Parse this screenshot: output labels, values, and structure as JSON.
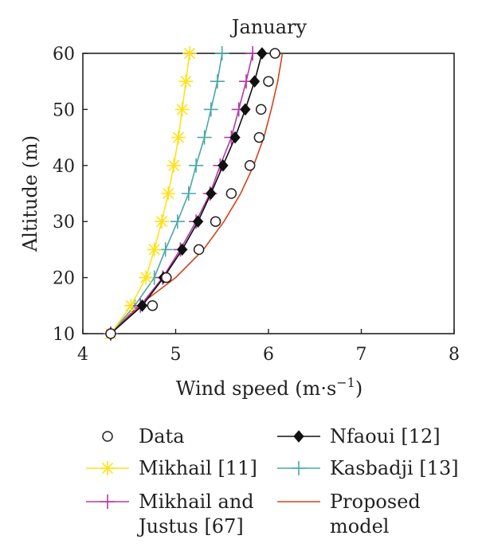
{
  "chart_data": {
    "type": "line",
    "title": "January",
    "xlabel": "Wind speed (m·s",
    "xlabel_sup": "−1",
    "xlabel_end": ")",
    "ylabel": "Altitude (m)",
    "xlim": [
      4,
      8
    ],
    "ylim": [
      10,
      60
    ],
    "xticks": [
      4,
      5,
      6,
      7,
      8
    ],
    "yticks": [
      10,
      20,
      30,
      40,
      50,
      60
    ],
    "grid": false,
    "legend_position": "bottom",
    "series": [
      {
        "name": "Data",
        "color": "#222222",
        "marker": "circle",
        "line": false,
        "points": [
          [
            4.3,
            10
          ],
          [
            4.75,
            15
          ],
          [
            4.9,
            20
          ],
          [
            5.25,
            25
          ],
          [
            5.43,
            30
          ],
          [
            5.6,
            35
          ],
          [
            5.8,
            40
          ],
          [
            5.9,
            45
          ],
          [
            5.92,
            50
          ],
          [
            6.0,
            55
          ],
          [
            6.07,
            60
          ]
        ]
      },
      {
        "name": "Mikhail [11]",
        "color": "#ffe11a",
        "marker": "star",
        "line": true,
        "points": [
          [
            4.3,
            10
          ],
          [
            4.52,
            15
          ],
          [
            4.68,
            20
          ],
          [
            4.77,
            25
          ],
          [
            4.85,
            30
          ],
          [
            4.92,
            35
          ],
          [
            4.98,
            40
          ],
          [
            5.03,
            45
          ],
          [
            5.07,
            50
          ],
          [
            5.11,
            55
          ],
          [
            5.15,
            60
          ]
        ]
      },
      {
        "name": "Mikhail and Justus [67]",
        "color": "#b23aa7",
        "marker": "plus",
        "line": true,
        "points": [
          [
            4.3,
            10
          ],
          [
            4.62,
            15
          ],
          [
            4.86,
            20
          ],
          [
            5.05,
            25
          ],
          [
            5.22,
            30
          ],
          [
            5.37,
            35
          ],
          [
            5.48,
            40
          ],
          [
            5.6,
            45
          ],
          [
            5.68,
            50
          ],
          [
            5.76,
            55
          ],
          [
            5.83,
            60
          ]
        ]
      },
      {
        "name": "Nfaoui [12]",
        "color": "#111111",
        "marker": "diamond",
        "line": true,
        "points": [
          [
            4.3,
            10
          ],
          [
            4.64,
            15
          ],
          [
            4.87,
            20
          ],
          [
            5.07,
            25
          ],
          [
            5.24,
            30
          ],
          [
            5.38,
            35
          ],
          [
            5.51,
            40
          ],
          [
            5.64,
            45
          ],
          [
            5.75,
            50
          ],
          [
            5.85,
            55
          ],
          [
            5.93,
            60
          ]
        ]
      },
      {
        "name": "Kasbadji [13]",
        "color": "#4aa8a8",
        "marker": "plus",
        "line": true,
        "points": [
          [
            4.3,
            10
          ],
          [
            4.56,
            15
          ],
          [
            4.77,
            20
          ],
          [
            4.89,
            25
          ],
          [
            5.02,
            30
          ],
          [
            5.14,
            35
          ],
          [
            5.22,
            40
          ],
          [
            5.31,
            45
          ],
          [
            5.38,
            50
          ],
          [
            5.45,
            55
          ],
          [
            5.5,
            60
          ]
        ]
      },
      {
        "name": "Proposed model",
        "color": "#d4431c",
        "marker": "none",
        "line": true,
        "points": [
          [
            4.3,
            10
          ],
          [
            4.6,
            15
          ],
          [
            5.0,
            20
          ],
          [
            5.3,
            25
          ],
          [
            5.52,
            30
          ],
          [
            5.7,
            35
          ],
          [
            5.84,
            40
          ],
          [
            5.95,
            45
          ],
          [
            6.03,
            50
          ],
          [
            6.1,
            55
          ],
          [
            6.15,
            60
          ]
        ]
      }
    ],
    "legend": [
      {
        "series": 0,
        "lines": [
          "Data"
        ]
      },
      {
        "series": 3,
        "lines": [
          "Nfaoui [12]"
        ]
      },
      {
        "series": 1,
        "lines": [
          "Mikhail [11]"
        ]
      },
      {
        "series": 4,
        "lines": [
          "Kasbadji [13]"
        ]
      },
      {
        "series": 2,
        "lines": [
          "Mikhail and",
          "Justus [67]"
        ]
      },
      {
        "series": 5,
        "lines": [
          "Proposed",
          "model"
        ]
      }
    ]
  }
}
